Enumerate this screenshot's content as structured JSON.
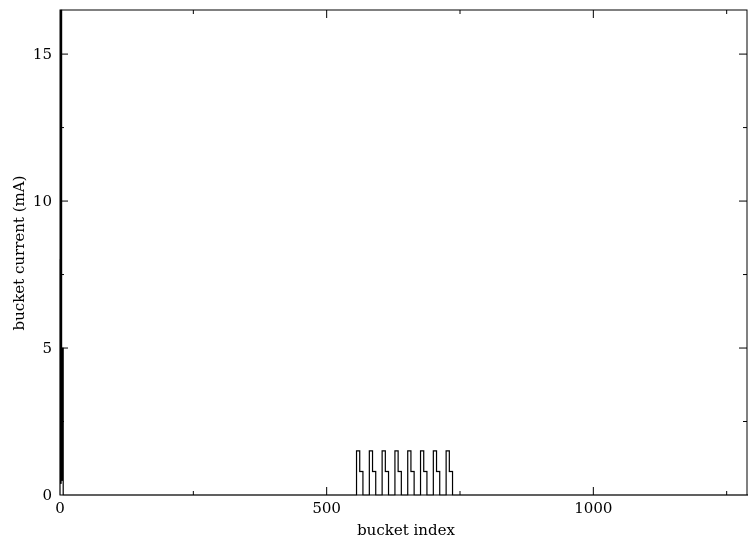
{
  "chart_data": {
    "type": "line",
    "title": "",
    "xlabel": "bucket index",
    "ylabel": "bucket current (mA)",
    "xlim": [
      0,
      1290
    ],
    "ylim": [
      0,
      16.5
    ],
    "x_ticks": [
      0,
      500,
      1000
    ],
    "y_ticks": [
      0,
      5,
      10,
      15
    ],
    "x_tick_labels": [
      "0",
      "500",
      "1000"
    ],
    "y_tick_labels": [
      "0",
      "5",
      "10",
      "15"
    ],
    "grid": false,
    "legend": "none",
    "line_color": "#000000",
    "series": [
      {
        "x": [
          0,
          0,
          1,
          1,
          2,
          2,
          3,
          3,
          4,
          4,
          5,
          5,
          6,
          6,
          556,
          556,
          562,
          562,
          568,
          568,
          580,
          580,
          586,
          586,
          592,
          592,
          604,
          604,
          610,
          610,
          616,
          616,
          628,
          628,
          634,
          634,
          640,
          640,
          652,
          652,
          658,
          658,
          664,
          664,
          676,
          676,
          682,
          682,
          688,
          688,
          700,
          700,
          706,
          706,
          712,
          712,
          724,
          724,
          730,
          730,
          736,
          736,
          1290
        ],
        "y": [
          0,
          8,
          8,
          0.4,
          0.4,
          16.5,
          16.5,
          4.5,
          4.5,
          0.5,
          0.5,
          5,
          5,
          0,
          0,
          1.5,
          1.5,
          0.8,
          0.8,
          0,
          0,
          1.5,
          1.5,
          0.8,
          0.8,
          0,
          0,
          1.5,
          1.5,
          0.8,
          0.8,
          0,
          0,
          1.5,
          1.5,
          0.8,
          0.8,
          0,
          0,
          1.5,
          1.5,
          0.8,
          0.8,
          0,
          0,
          1.5,
          1.5,
          0.8,
          0.8,
          0,
          0,
          1.5,
          1.5,
          0.8,
          0.8,
          0,
          0,
          1.5,
          1.5,
          0.8,
          0.8,
          0,
          0
        ]
      }
    ]
  }
}
